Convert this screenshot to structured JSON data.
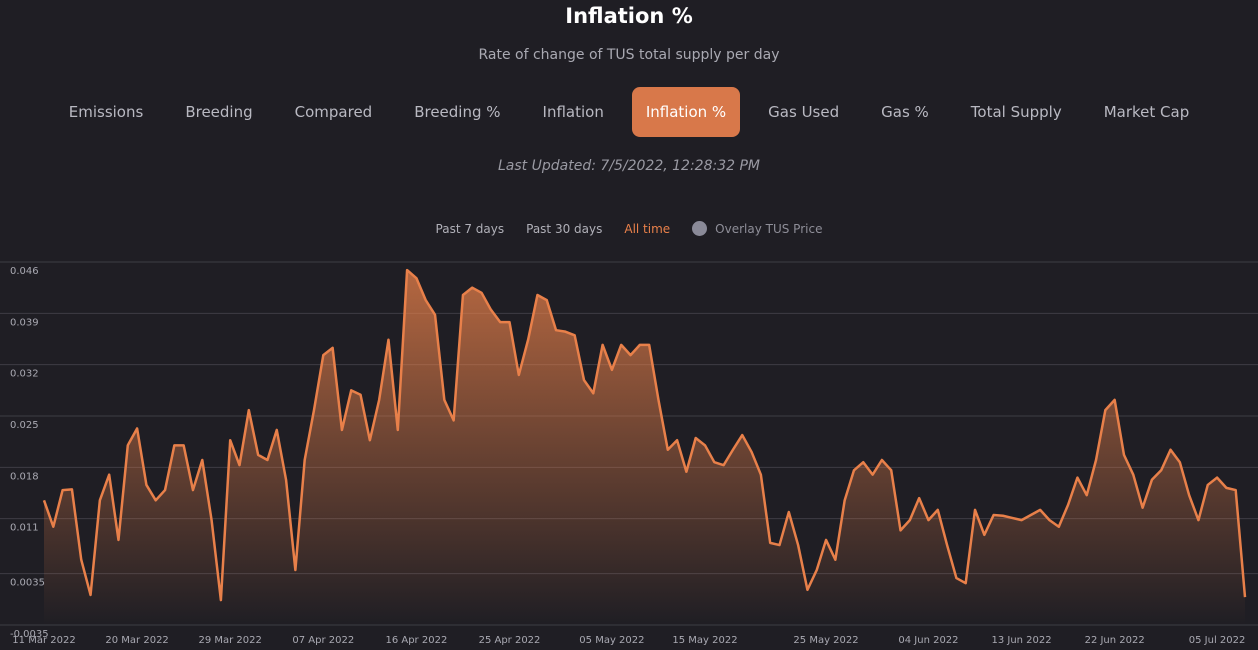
{
  "header": {
    "title": "Inflation %",
    "subtitle": "Rate of change of TUS total supply per day"
  },
  "tabs": {
    "items": [
      "Emissions",
      "Breeding",
      "Compared",
      "Breeding %",
      "Inflation",
      "Inflation %",
      "Gas Used",
      "Gas %",
      "Total Supply",
      "Market Cap"
    ],
    "active": 5
  },
  "last_updated": "Last Updated: 7/5/2022, 12:28:32 PM",
  "range": {
    "options": [
      "Past 7 days",
      "Past 30 days",
      "All time"
    ],
    "active": 2
  },
  "overlay": {
    "label": "Overlay TUS Price"
  },
  "chart_data": {
    "type": "area",
    "color": "#e8804a",
    "grid": true,
    "ylim": [
      -0.0035,
      0.046
    ],
    "yticks": [
      0.046,
      0.039,
      0.032,
      0.025,
      0.018,
      0.011,
      0.0035,
      -0.0035
    ],
    "categories": [
      "11 Mar 2022",
      null,
      null,
      null,
      null,
      null,
      null,
      null,
      null,
      null,
      "20 Mar 2022",
      null,
      null,
      null,
      null,
      null,
      null,
      null,
      null,
      null,
      "29 Mar 2022",
      null,
      null,
      null,
      null,
      null,
      null,
      null,
      null,
      null,
      "07 Apr 2022",
      null,
      null,
      null,
      null,
      null,
      null,
      null,
      null,
      null,
      "16 Apr 2022",
      null,
      null,
      null,
      null,
      null,
      null,
      null,
      null,
      null,
      "25 Apr 2022",
      null,
      null,
      null,
      null,
      null,
      null,
      null,
      null,
      null,
      null,
      "05 May 2022",
      null,
      null,
      null,
      null,
      null,
      null,
      null,
      null,
      null,
      "15 May 2022",
      null,
      null,
      null,
      null,
      null,
      null,
      null,
      null,
      null,
      null,
      null,
      null,
      "25 May 2022",
      null,
      null,
      null,
      null,
      null,
      null,
      null,
      null,
      null,
      null,
      "04 Jun 2022",
      null,
      null,
      null,
      null,
      null,
      null,
      null,
      null,
      null,
      "13 Jun 2022",
      null,
      null,
      null,
      null,
      null,
      null,
      null,
      null,
      null,
      "22 Jun 2022",
      null,
      null,
      null,
      null,
      null,
      null,
      null,
      null,
      null,
      null,
      "05 Jul 2022",
      null,
      null,
      null
    ],
    "values": [
      0.0135,
      0.0099,
      0.0149,
      0.015,
      0.0054,
      0.0006,
      0.0135,
      0.017,
      0.0081,
      0.021,
      0.0233,
      0.0156,
      0.0135,
      0.0149,
      0.021,
      0.021,
      0.0149,
      0.019,
      0.0108,
      -0.0001,
      0.0217,
      0.0183,
      0.0258,
      0.0197,
      0.019,
      0.0231,
      0.0163,
      0.004,
      0.019,
      0.0258,
      0.0333,
      0.0343,
      0.0231,
      0.0285,
      0.0279,
      0.0217,
      0.0272,
      0.0354,
      0.0231,
      0.0449,
      0.0438,
      0.0408,
      0.0388,
      0.0272,
      0.0244,
      0.0415,
      0.0425,
      0.0418,
      0.0395,
      0.0378,
      0.0378,
      0.0306,
      0.0354,
      0.0415,
      0.0408,
      0.0367,
      0.0365,
      0.036,
      0.0299,
      0.0281,
      0.0347,
      0.0313,
      0.0347,
      0.0333,
      0.0347,
      0.0347,
      0.0272,
      0.0204,
      0.0217,
      0.0174,
      0.022,
      0.021,
      0.0187,
      0.0183,
      0.0204,
      0.0224,
      0.0201,
      0.017,
      0.0077,
      0.0074,
      0.0119,
      0.0074,
      0.0013,
      0.004,
      0.0081,
      0.0054,
      0.0135,
      0.0176,
      0.0187,
      0.017,
      0.019,
      0.0176,
      0.0094,
      0.0108,
      0.0138,
      0.0108,
      0.0122,
      0.0074,
      0.0029,
      0.0022,
      0.0122,
      0.0088,
      0.0115,
      0.0114,
      0.0111,
      0.0108,
      0.0115,
      0.0122,
      0.0108,
      0.0099,
      0.0129,
      0.0166,
      0.0142,
      0.019,
      0.0258,
      0.0272,
      0.0197,
      0.017,
      0.0125,
      0.0163,
      0.0176,
      0.0204,
      0.0187,
      0.0142,
      0.0108,
      0.0156,
      0.0166,
      0.0152,
      0.0149,
      0.0003
    ]
  }
}
